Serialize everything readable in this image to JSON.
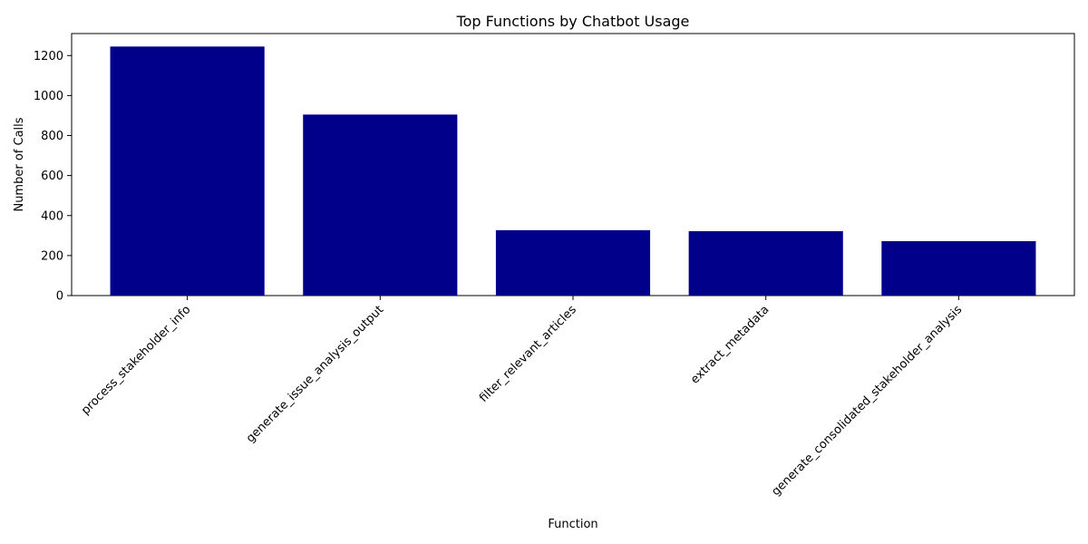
{
  "chart_data": {
    "type": "bar",
    "title": "Top Functions by Chatbot Usage",
    "xlabel": "Function",
    "ylabel": "Number of Calls",
    "categories": [
      "process_stakeholder_info",
      "generate_issue_analysis_output",
      "filter_relevant_articles",
      "extract_metadata",
      "generate_consolidated_stakeholder_analysis"
    ],
    "values": [
      1245,
      905,
      327,
      322,
      272
    ],
    "ylim": [
      0,
      1310
    ],
    "yticks": [
      0,
      200,
      400,
      600,
      800,
      1000,
      1200
    ],
    "bar_color": "#00008b",
    "grid": false,
    "legend": "none"
  }
}
